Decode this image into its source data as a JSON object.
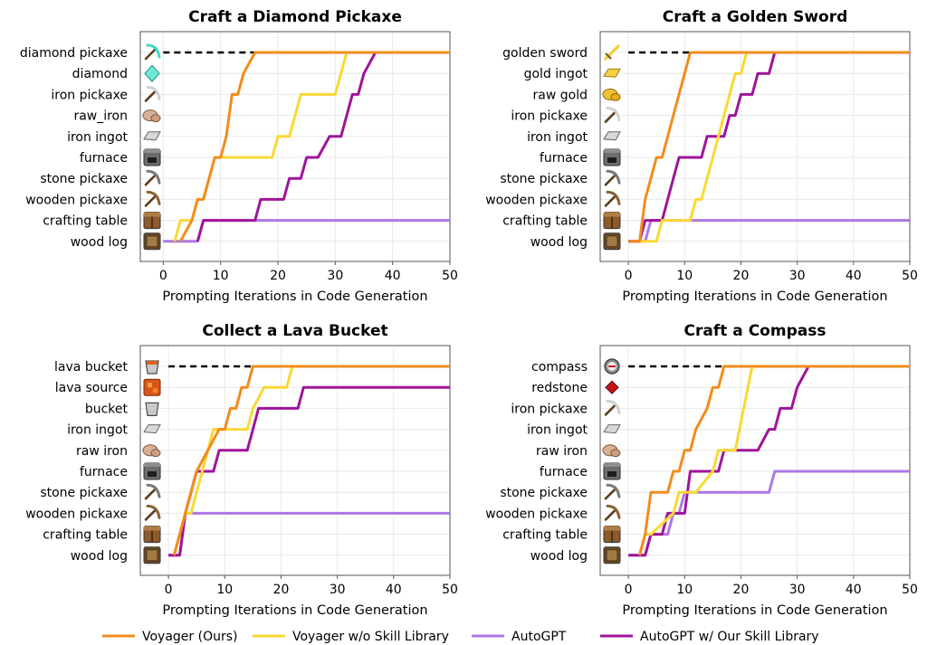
{
  "colors": {
    "voyager": "#f28c1c",
    "voyager_no_skill": "#fbd835",
    "autogpt": "#ad78e6",
    "autogpt_skill": "#a0149b",
    "target": "#000000",
    "grid": "#e8e8e8",
    "axis": "#555555"
  },
  "legend": [
    {
      "key": "voyager",
      "label": "Voyager (Ours)"
    },
    {
      "key": "voyager_no_skill",
      "label": "Voyager w/o Skill Library"
    },
    {
      "key": "autogpt",
      "label": "AutoGPT"
    },
    {
      "key": "autogpt_skill",
      "label": "AutoGPT w/ Our Skill Library"
    }
  ],
  "chart_data": [
    {
      "type": "line",
      "title": "Craft a Diamond Pickaxe",
      "xlabel": "Prompting Iterations in Code Generation",
      "xlim": [
        -4,
        50
      ],
      "xticks": [
        0,
        10,
        20,
        30,
        40,
        50
      ],
      "y_categories": [
        "wood log",
        "crafting table",
        "wooden pickaxe",
        "stone pickaxe",
        "furnace",
        "iron ingot",
        "raw_iron",
        "iron pickaxe",
        "diamond",
        "diamond pickaxe"
      ],
      "y_icons": [
        "log-icon",
        "crafting-table-icon",
        "wooden-pickaxe-icon",
        "stone-pickaxe-icon",
        "furnace-icon",
        "iron-ingot-icon",
        "raw-iron-icon",
        "iron-pickaxe-icon",
        "diamond-icon",
        "diamond-pickaxe-icon"
      ],
      "target_line": {
        "x": [
          0,
          16
        ],
        "y": 9
      },
      "series": [
        {
          "key": "voyager",
          "x": [
            3,
            5,
            5,
            6,
            7,
            9,
            10,
            11,
            12,
            13,
            14,
            16,
            50
          ],
          "y": [
            0,
            1,
            1,
            2,
            2,
            4,
            4,
            5,
            7,
            7,
            8,
            9,
            9
          ]
        },
        {
          "key": "voyager_no_skill",
          "x": [
            2,
            3,
            5,
            6,
            7,
            9,
            19,
            20,
            22,
            23,
            24,
            30,
            31,
            32,
            35,
            37,
            50
          ],
          "y": [
            0,
            1,
            1,
            2,
            2,
            4,
            4,
            5,
            5,
            6,
            7,
            7,
            8,
            9,
            9,
            9,
            9
          ]
        },
        {
          "key": "autogpt",
          "x": [
            0,
            6,
            7,
            50
          ],
          "y": [
            0,
            0,
            1,
            1
          ]
        },
        {
          "key": "autogpt_skill",
          "x": [
            6,
            7,
            16,
            17,
            21,
            22,
            24,
            25,
            27,
            29,
            31,
            32,
            33,
            34,
            35,
            37,
            50
          ],
          "y": [
            0,
            1,
            1,
            2,
            2,
            3,
            3,
            4,
            4,
            5,
            5,
            6,
            7,
            7,
            8,
            9,
            9
          ]
        }
      ]
    },
    {
      "type": "line",
      "title": "Craft a Golden Sword",
      "xlabel": "Prompting Iterations in Code Generation",
      "xlim": [
        -5,
        50
      ],
      "xticks": [
        0,
        10,
        20,
        30,
        40,
        50
      ],
      "y_categories": [
        "wood log",
        "crafting table",
        "wooden pickaxe",
        "stone pickaxe",
        "furnace",
        "iron ingot",
        "iron pickaxe",
        "raw gold",
        "gold ingot",
        "golden sword"
      ],
      "y_icons": [
        "log-icon",
        "crafting-table-icon",
        "wooden-pickaxe-icon",
        "stone-pickaxe-icon",
        "furnace-icon",
        "iron-ingot-icon",
        "iron-pickaxe-icon",
        "raw-gold-icon",
        "gold-ingot-icon",
        "golden-sword-icon"
      ],
      "target_line": {
        "x": [
          0,
          12
        ],
        "y": 9
      },
      "series": [
        {
          "key": "voyager",
          "x": [
            0,
            2,
            3,
            4,
            5,
            6,
            7,
            10,
            11,
            12,
            50
          ],
          "y": [
            0,
            0,
            2,
            3,
            4,
            4,
            5,
            8,
            9,
            9,
            9
          ]
        },
        {
          "key": "voyager_no_skill",
          "x": [
            2,
            5,
            6,
            11,
            12,
            13,
            14,
            15,
            18,
            19,
            20,
            21,
            29,
            50
          ],
          "y": [
            0,
            0,
            1,
            1,
            2,
            2,
            3,
            4,
            7,
            8,
            8,
            9,
            9,
            9
          ]
        },
        {
          "key": "autogpt",
          "x": [
            0,
            3,
            4,
            50
          ],
          "y": [
            0,
            0,
            1,
            1
          ]
        },
        {
          "key": "autogpt_skill",
          "x": [
            0,
            2,
            3,
            6,
            7,
            8,
            9,
            13,
            14,
            17,
            18,
            19,
            20,
            22,
            23,
            25,
            26,
            28,
            29,
            50
          ],
          "y": [
            0,
            0,
            1,
            1,
            2,
            3,
            4,
            4,
            5,
            5,
            6,
            6,
            7,
            7,
            8,
            8,
            9,
            9,
            9,
            9
          ]
        }
      ]
    },
    {
      "type": "line",
      "title": "Collect a Lava Bucket",
      "xlabel": "Prompting Iterations in Code Generation",
      "xlim": [
        -5,
        50
      ],
      "xticks": [
        0,
        10,
        20,
        30,
        40,
        50
      ],
      "y_categories": [
        "wood log",
        "crafting table",
        "wooden pickaxe",
        "stone pickaxe",
        "furnace",
        "raw iron",
        "iron ingot",
        "bucket",
        "lava source",
        "lava bucket"
      ],
      "y_icons": [
        "log-icon",
        "crafting-table-icon",
        "wooden-pickaxe-icon",
        "stone-pickaxe-icon",
        "furnace-icon",
        "raw-iron-icon",
        "iron-ingot-icon",
        "bucket-icon",
        "lava-source-icon",
        "lava-bucket-icon"
      ],
      "target_line": {
        "x": [
          0,
          16
        ],
        "y": 9
      },
      "series": [
        {
          "key": "voyager",
          "x": [
            1,
            2,
            3,
            4,
            5,
            7,
            9,
            10,
            11,
            12,
            13,
            14,
            15,
            16,
            50
          ],
          "y": [
            0,
            1,
            2,
            3,
            4,
            5,
            6,
            6,
            7,
            7,
            8,
            8,
            9,
            9,
            9
          ]
        },
        {
          "key": "voyager_no_skill",
          "x": [
            1,
            2,
            3,
            4,
            5,
            6,
            7,
            8,
            14,
            15,
            17,
            21,
            22,
            50
          ],
          "y": [
            0,
            1,
            2,
            2,
            3,
            4,
            5,
            6,
            6,
            7,
            8,
            8,
            9,
            9
          ]
        },
        {
          "key": "autogpt",
          "x": [
            0,
            2,
            3,
            50
          ],
          "y": [
            0,
            0,
            2,
            2
          ]
        },
        {
          "key": "autogpt_skill",
          "x": [
            0,
            2,
            3,
            4,
            5,
            8,
            9,
            14,
            15,
            16,
            23,
            24,
            50
          ],
          "y": [
            0,
            0,
            2,
            3,
            4,
            4,
            5,
            5,
            6,
            7,
            7,
            8,
            8
          ]
        }
      ]
    },
    {
      "type": "line",
      "title": "Craft a Compass",
      "xlabel": "Prompting Iterations in Code Generation",
      "xlim": [
        -5,
        50
      ],
      "xticks": [
        0,
        10,
        20,
        30,
        40,
        50
      ],
      "y_categories": [
        "wood log",
        "crafting table",
        "wooden pickaxe",
        "stone pickaxe",
        "furnace",
        "raw iron",
        "iron ingot",
        "iron pickaxe",
        "redstone",
        "compass"
      ],
      "y_icons": [
        "log-icon",
        "crafting-table-icon",
        "wooden-pickaxe-icon",
        "stone-pickaxe-icon",
        "furnace-icon",
        "raw-iron-icon",
        "iron-ingot-icon",
        "iron-pickaxe-icon",
        "redstone-icon",
        "compass-icon"
      ],
      "target_line": {
        "x": [
          0,
          18
        ],
        "y": 9
      },
      "series": [
        {
          "key": "voyager",
          "x": [
            2,
            3,
            4,
            7,
            8,
            9,
            10,
            11,
            12,
            14,
            15,
            16,
            17,
            18,
            50
          ],
          "y": [
            0,
            1,
            3,
            3,
            4,
            4,
            5,
            5,
            6,
            7,
            8,
            8,
            9,
            9,
            9
          ]
        },
        {
          "key": "voyager_no_skill",
          "x": [
            2,
            3,
            4,
            8,
            9,
            10,
            11,
            12,
            15,
            16,
            17,
            18,
            19,
            22,
            23,
            31,
            32,
            50
          ],
          "y": [
            0,
            1,
            1,
            2,
            3,
            3,
            3,
            3,
            4,
            5,
            5,
            5,
            5,
            9,
            9,
            9,
            9,
            9
          ]
        },
        {
          "key": "autogpt",
          "x": [
            0,
            3,
            4,
            7,
            8,
            9,
            10,
            11,
            12,
            25,
            26,
            50
          ],
          "y": [
            0,
            0,
            1,
            1,
            2,
            2,
            3,
            3,
            3,
            3,
            4,
            4
          ]
        },
        {
          "key": "autogpt_skill",
          "x": [
            0,
            3,
            4,
            6,
            7,
            10,
            11,
            16,
            17,
            19,
            20,
            23,
            25,
            26,
            27,
            29,
            30,
            32,
            50
          ],
          "y": [
            0,
            0,
            1,
            1,
            2,
            2,
            4,
            4,
            5,
            5,
            5,
            5,
            6,
            6,
            7,
            7,
            8,
            9,
            9
          ]
        }
      ]
    }
  ]
}
